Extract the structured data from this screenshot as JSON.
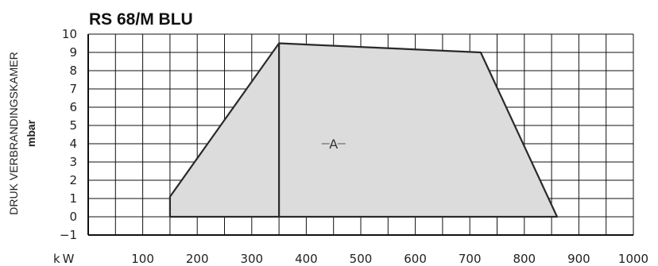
{
  "chart_data": {
    "type": "area",
    "title": "RS 68/M BLU",
    "xlabel": "kW",
    "ylabel": "DRUK VERBRANDINGSKAMER",
    "yunit": "mbar",
    "xlim": [
      0,
      1000
    ],
    "ylim": [
      -1,
      10
    ],
    "x_ticks": [
      100,
      200,
      300,
      400,
      500,
      600,
      700,
      800,
      900,
      1000
    ],
    "y_ticks": [
      -1,
      0,
      1,
      2,
      3,
      4,
      5,
      6,
      7,
      8,
      9,
      10
    ],
    "grid": true,
    "fill_color": "#dcdcdc",
    "line_color": "#2a2a2a",
    "series": [
      {
        "points": [
          [
            150,
            0
          ],
          [
            150,
            1.1
          ],
          [
            350,
            9.5
          ],
          [
            720,
            9.0
          ],
          [
            860,
            0
          ]
        ]
      }
    ],
    "divider_x": 350,
    "area_label": "A",
    "area_label_position": [
      450,
      4
    ]
  }
}
